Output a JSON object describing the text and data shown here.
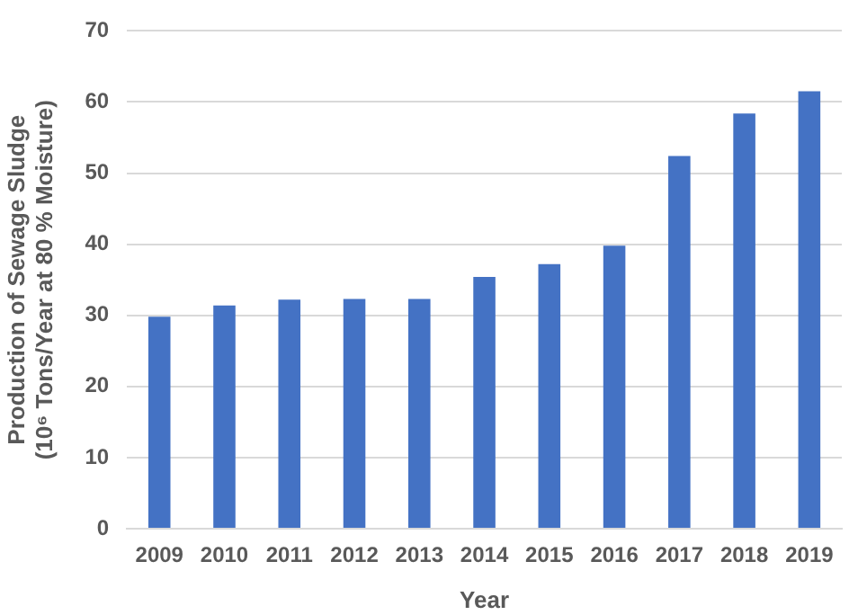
{
  "chart_data": {
    "type": "bar",
    "xlabel": "Year",
    "ylabel": "Production of Sewage Sludge\n(10⁶ Tons/Year at 80 % Moisture)",
    "categories": [
      "2009",
      "2010",
      "2011",
      "2012",
      "2013",
      "2014",
      "2015",
      "2016",
      "2017",
      "2018",
      "2019"
    ],
    "values": [
      29.8,
      31.4,
      32.2,
      32.3,
      32.3,
      35.4,
      37.2,
      39.8,
      52.4,
      58.4,
      61.5
    ],
    "color": "#4472c4",
    "ylim": [
      0,
      70
    ],
    "yticks": [
      0,
      10,
      20,
      30,
      40,
      50,
      60,
      70
    ],
    "grid": "y"
  }
}
